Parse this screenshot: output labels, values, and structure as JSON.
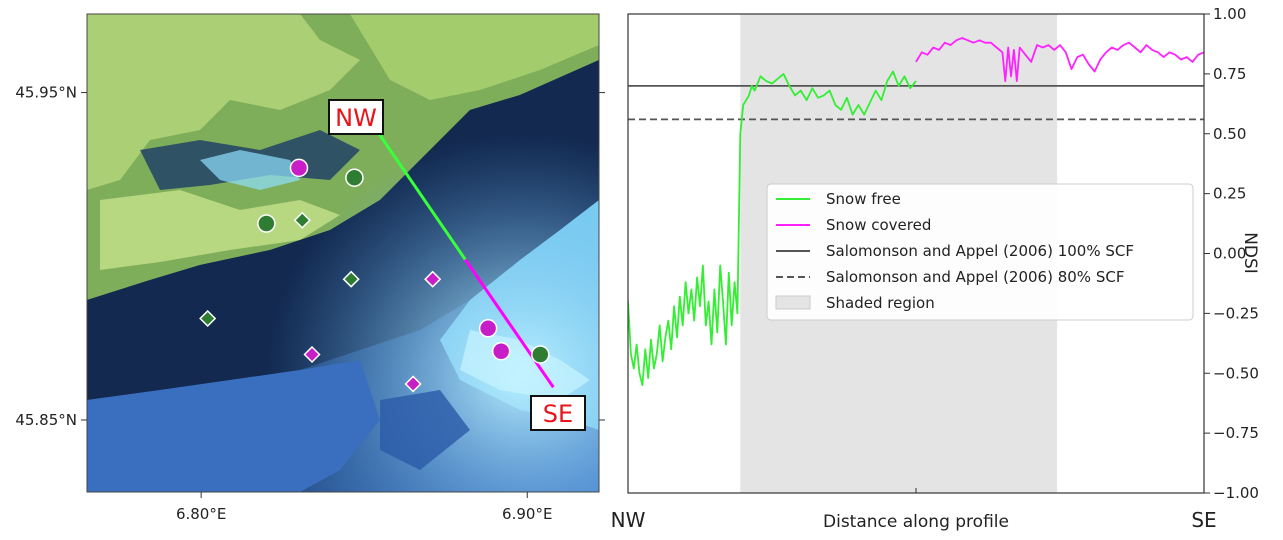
{
  "map": {
    "y_ticks": [
      {
        "value": 45.95,
        "label": "45.95°N"
      },
      {
        "value": 45.85,
        "label": "45.85°N"
      }
    ],
    "x_ticks": [
      {
        "value": 6.8,
        "label": "6.80°E"
      },
      {
        "value": 6.9,
        "label": "6.90°E"
      }
    ],
    "xlim": [
      6.765,
      6.922
    ],
    "ylim": [
      45.828,
      45.974
    ],
    "profile_start": {
      "label": "NW",
      "lon": 6.85,
      "lat": 45.944
    },
    "profile_break": {
      "lon": 6.881,
      "lat": 45.899
    },
    "profile_end": {
      "label": "SE",
      "lon": 6.908,
      "lat": 45.86
    },
    "colors": {
      "snow_free": "#2f7d32",
      "snow_covered": "#c81ec8",
      "profile_snow_free": "#39ff39",
      "profile_snow_covered": "#ff00ff"
    },
    "circles_snow_free": [
      {
        "lon": 6.847,
        "lat": 45.924
      },
      {
        "lon": 6.82,
        "lat": 45.91
      },
      {
        "lon": 6.904,
        "lat": 45.87
      }
    ],
    "circles_snow_covered": [
      {
        "lon": 6.83,
        "lat": 45.927
      },
      {
        "lon": 6.888,
        "lat": 45.878
      },
      {
        "lon": 6.892,
        "lat": 45.871
      }
    ],
    "diamonds_snow_free": [
      {
        "lon": 6.831,
        "lat": 45.911
      },
      {
        "lon": 6.846,
        "lat": 45.893
      },
      {
        "lon": 6.802,
        "lat": 45.881
      }
    ],
    "diamonds_snow_covered": [
      {
        "lon": 6.871,
        "lat": 45.893
      },
      {
        "lon": 6.834,
        "lat": 45.87
      },
      {
        "lon": 6.865,
        "lat": 45.861
      }
    ]
  },
  "chart_data": {
    "type": "line",
    "xlabel": "Distance along profile",
    "ylabel": "NDSI",
    "x_start_label": "NW",
    "x_end_label": "SE",
    "xlim": [
      0,
      1
    ],
    "ylim": [
      -1.0,
      1.0
    ],
    "y_ticks": [
      "1.00",
      "0.75",
      "0.50",
      "0.25",
      "0.00",
      "−0.25",
      "−0.50",
      "−0.75",
      "−1.00"
    ],
    "legend_position": "center-right",
    "shaded_region": {
      "x": [
        0.195,
        0.745
      ],
      "label": "Shaded region",
      "color": "#e4e4e4"
    },
    "hlines": [
      {
        "name": "Salomonson and Appel (2006) 100% SCF",
        "y": 0.7,
        "style": "solid",
        "color": "#555555"
      },
      {
        "name": "Salomonson and Appel (2006) 80% SCF",
        "y": 0.56,
        "style": "dashed",
        "color": "#555555"
      }
    ],
    "series": [
      {
        "name": "Snow free",
        "color": "#33ee33",
        "x": [
          0.0,
          0.005,
          0.01,
          0.015,
          0.02,
          0.025,
          0.03,
          0.035,
          0.04,
          0.045,
          0.05,
          0.055,
          0.06,
          0.065,
          0.07,
          0.075,
          0.08,
          0.085,
          0.09,
          0.095,
          0.1,
          0.105,
          0.11,
          0.115,
          0.12,
          0.125,
          0.13,
          0.135,
          0.14,
          0.145,
          0.15,
          0.155,
          0.16,
          0.165,
          0.17,
          0.175,
          0.18,
          0.185,
          0.19,
          0.195,
          0.2,
          0.205,
          0.21,
          0.215,
          0.22,
          0.23,
          0.24,
          0.25,
          0.26,
          0.27,
          0.28,
          0.29,
          0.3,
          0.31,
          0.32,
          0.33,
          0.34,
          0.35,
          0.36,
          0.37,
          0.38,
          0.39,
          0.4,
          0.41,
          0.42,
          0.43,
          0.44,
          0.45,
          0.46,
          0.47,
          0.48,
          0.49,
          0.5
        ],
        "y": [
          -0.2,
          -0.42,
          -0.48,
          -0.38,
          -0.5,
          -0.55,
          -0.4,
          -0.52,
          -0.36,
          -0.48,
          -0.42,
          -0.3,
          -0.45,
          -0.35,
          -0.28,
          -0.4,
          -0.22,
          -0.35,
          -0.18,
          -0.3,
          -0.12,
          -0.25,
          -0.15,
          -0.28,
          -0.1,
          -0.22,
          -0.05,
          -0.3,
          -0.2,
          -0.38,
          -0.15,
          -0.33,
          -0.05,
          -0.2,
          -0.38,
          -0.08,
          -0.3,
          -0.12,
          -0.25,
          0.5,
          0.62,
          0.64,
          0.66,
          0.7,
          0.68,
          0.74,
          0.72,
          0.71,
          0.73,
          0.75,
          0.7,
          0.66,
          0.68,
          0.64,
          0.69,
          0.65,
          0.66,
          0.68,
          0.62,
          0.6,
          0.65,
          0.58,
          0.62,
          0.58,
          0.63,
          0.68,
          0.64,
          0.72,
          0.76,
          0.7,
          0.74,
          0.69,
          0.72
        ]
      },
      {
        "name": "Snow covered",
        "color": "#ff22ff",
        "x": [
          0.5,
          0.51,
          0.52,
          0.53,
          0.54,
          0.55,
          0.56,
          0.57,
          0.58,
          0.59,
          0.6,
          0.61,
          0.62,
          0.63,
          0.64,
          0.65,
          0.655,
          0.66,
          0.665,
          0.67,
          0.675,
          0.68,
          0.69,
          0.7,
          0.71,
          0.72,
          0.73,
          0.74,
          0.75,
          0.76,
          0.77,
          0.78,
          0.79,
          0.8,
          0.81,
          0.82,
          0.83,
          0.84,
          0.85,
          0.86,
          0.87,
          0.88,
          0.89,
          0.9,
          0.91,
          0.92,
          0.93,
          0.94,
          0.95,
          0.96,
          0.97,
          0.98,
          0.99,
          1.0
        ],
        "y": [
          0.8,
          0.84,
          0.83,
          0.86,
          0.85,
          0.88,
          0.87,
          0.89,
          0.9,
          0.89,
          0.88,
          0.89,
          0.88,
          0.88,
          0.86,
          0.84,
          0.72,
          0.86,
          0.74,
          0.85,
          0.72,
          0.86,
          0.83,
          0.8,
          0.87,
          0.86,
          0.87,
          0.85,
          0.87,
          0.84,
          0.77,
          0.82,
          0.83,
          0.79,
          0.76,
          0.81,
          0.84,
          0.86,
          0.85,
          0.87,
          0.88,
          0.86,
          0.84,
          0.87,
          0.85,
          0.84,
          0.82,
          0.84,
          0.83,
          0.81,
          0.82,
          0.8,
          0.83,
          0.84
        ]
      }
    ]
  }
}
